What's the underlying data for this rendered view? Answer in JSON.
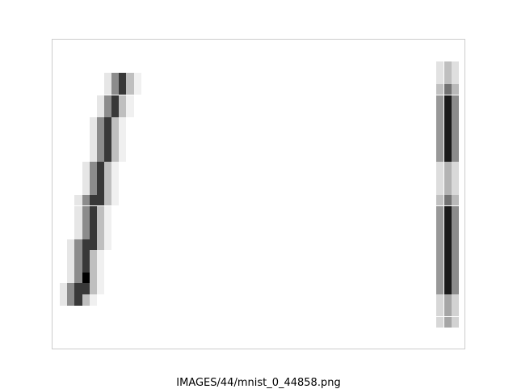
{
  "caption": "IMAGES/44/mnist_0_44858.png",
  "image_content": {
    "left_digit": "1",
    "right_digit": "1",
    "digit_intensity_rows": {
      "left": [
        [
          5,
          0,
          0,
          0,
          0,
          0,
          0,
          0,
          0,
          0,
          0,
          0,
          0,
          0,
          0,
          0,
          0,
          0,
          0,
          0,
          0,
          0,
          0,
          0,
          0,
          0,
          0,
          0,
          0,
          0
        ],
        [
          0,
          0,
          0,
          0,
          0,
          0,
          0,
          0,
          0,
          0,
          0,
          0,
          0,
          0,
          0,
          0,
          0,
          0,
          0,
          0,
          0,
          0,
          0,
          0,
          0,
          0,
          0,
          0,
          0,
          0
        ],
        [
          0,
          0,
          0,
          0,
          0,
          0,
          0,
          0,
          0,
          0,
          0,
          0,
          0,
          0,
          0,
          0,
          0,
          0,
          0,
          0,
          0,
          0,
          0,
          0,
          0,
          0,
          0,
          0,
          0,
          0
        ],
        [
          0,
          0,
          0,
          0,
          0,
          0,
          0,
          0,
          0,
          0,
          0,
          0,
          0,
          0,
          0,
          0,
          0,
          0,
          0,
          0,
          0,
          0,
          0,
          0,
          0,
          0,
          0,
          0,
          0,
          0
        ]
      ]
    }
  },
  "colors": {
    "frame_border": "#cccccc",
    "background": "#ffffff"
  }
}
